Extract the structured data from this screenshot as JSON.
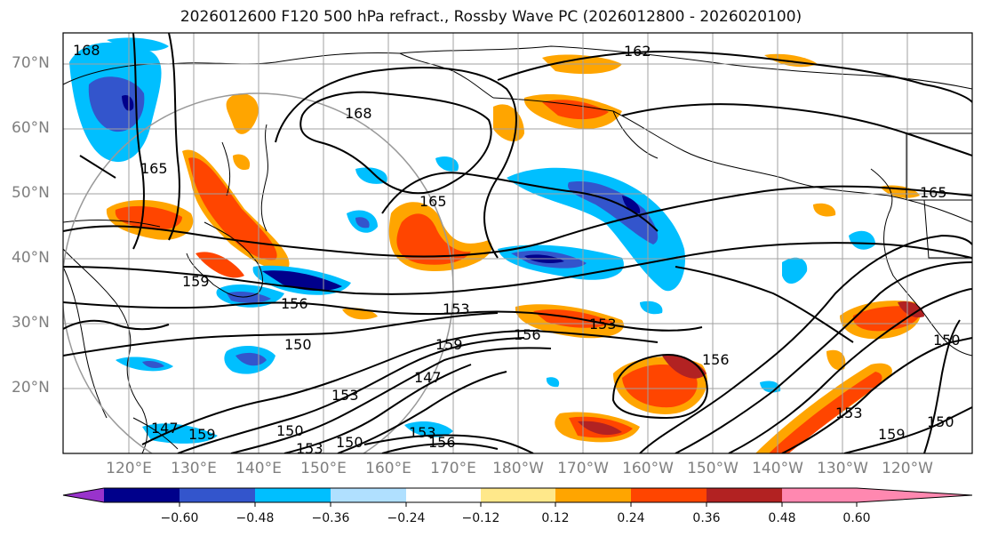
{
  "title": "2026012600 F120 500 hPa refract., Rossby Wave PC (2026012800 - 2026020100)",
  "map": {
    "lat_labels": [
      "70°N",
      "60°N",
      "50°N",
      "40°N",
      "30°N",
      "20°N"
    ],
    "lon_labels": [
      "120°E",
      "130°E",
      "140°E",
      "150°E",
      "160°E",
      "170°E",
      "180°W",
      "170°W",
      "160°W",
      "150°W",
      "140°W",
      "130°W",
      "120°W"
    ],
    "contour_labels": [
      {
        "text": "168"
      },
      {
        "text": "162"
      },
      {
        "text": "168"
      },
      {
        "text": "165"
      },
      {
        "text": "165"
      },
      {
        "text": "165"
      },
      {
        "text": "159"
      },
      {
        "text": "156"
      },
      {
        "text": "153"
      },
      {
        "text": "153"
      },
      {
        "text": "150"
      },
      {
        "text": "156"
      },
      {
        "text": "159"
      },
      {
        "text": "147"
      },
      {
        "text": "153"
      },
      {
        "text": "156"
      },
      {
        "text": "150"
      },
      {
        "text": "153"
      },
      {
        "text": "150"
      },
      {
        "text": "153"
      },
      {
        "text": "156"
      },
      {
        "text": "147"
      },
      {
        "text": "159"
      },
      {
        "text": "153"
      },
      {
        "text": "159"
      },
      {
        "text": "150"
      },
      {
        "text": "150"
      }
    ]
  },
  "colorbar": {
    "colors": [
      "#9933cc",
      "#00008b",
      "#3355cc",
      "#00bfff",
      "#b0e0ff",
      "#ffffff",
      "#ffe88a",
      "#ffa500",
      "#ff4500",
      "#b22222",
      "#ff88b0"
    ],
    "tick_labels": [
      "−0.60",
      "−0.48",
      "−0.36",
      "−0.24",
      "−0.12",
      "0.12",
      "0.24",
      "0.36",
      "0.48",
      "0.60"
    ]
  },
  "colors": {
    "land_line": "#000000",
    "grid": "#a0a0a0",
    "contour": "#000000"
  }
}
